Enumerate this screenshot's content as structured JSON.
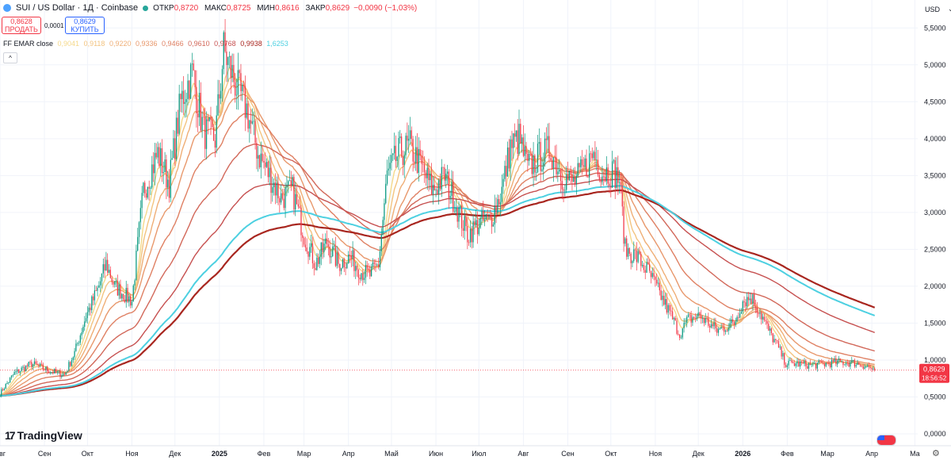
{
  "header": {
    "symbol": "SUI / US Dollar · 1Д · Coinbase",
    "open_label": "ОТКР",
    "open": "0,8720",
    "high_label": "МАКС",
    "high": "0,8725",
    "low_label": "МИН",
    "low": "0,8616",
    "close_label": "ЗАКР",
    "close": "0,8629",
    "change": "−0,0090 (−1,03%)"
  },
  "trade": {
    "sell_price": "0,8628",
    "sell_label": "ПРОДАТЬ",
    "spread": "0,0001",
    "buy_price": "0,8629",
    "buy_label": "КУПИТЬ"
  },
  "indicator": {
    "name": "FF EMAR close",
    "values": [
      "0,9041",
      "0,9118",
      "0,9220",
      "0,9336",
      "0,9466",
      "0,9610",
      "0,9768",
      "0,9938",
      "1,6253"
    ],
    "colors": [
      "#f5d98b",
      "#f3c480",
      "#efae76",
      "#e8986c",
      "#df8063",
      "#d2685a",
      "#c65050",
      "#a8261f",
      "#4dd0e1"
    ],
    "collapse": "^"
  },
  "currency": {
    "label": "USD",
    "arrow": "⌄"
  },
  "logo": {
    "text": "TradingView",
    "mark": "17"
  },
  "price_badge": {
    "price": "0,8629",
    "countdown": "18:56:52"
  },
  "chart_data": {
    "type": "candlestick",
    "symbol": "SUI/USD",
    "timeframe": "1D",
    "ylim": [
      0,
      5.75
    ],
    "yticks": [
      0,
      0.5,
      1.0,
      1.5,
      2.0,
      2.5,
      3.0,
      3.5,
      4.0,
      4.5,
      5.0,
      5.5
    ],
    "ytick_labels": [
      "0,0000",
      "0,5000",
      "1,0000",
      "1,5000",
      "2,0000",
      "2,5000",
      "3,0000",
      "3,5000",
      "4,0000",
      "4,5000",
      "5,0000",
      "5,5000"
    ],
    "xlim_day": [
      0,
      640
    ],
    "xticks": [
      {
        "label": "Авг",
        "day": 0,
        "bold": false
      },
      {
        "label": "Сен",
        "day": 31,
        "bold": false
      },
      {
        "label": "Окт",
        "day": 61,
        "bold": false
      },
      {
        "label": "Ноя",
        "day": 92,
        "bold": false
      },
      {
        "label": "Дек",
        "day": 122,
        "bold": false
      },
      {
        "label": "2025",
        "day": 153,
        "bold": true
      },
      {
        "label": "Фев",
        "day": 184,
        "bold": false
      },
      {
        "label": "Мар",
        "day": 212,
        "bold": false
      },
      {
        "label": "Апр",
        "day": 243,
        "bold": false
      },
      {
        "label": "Май",
        "day": 273,
        "bold": false
      },
      {
        "label": "Июн",
        "day": 304,
        "bold": false
      },
      {
        "label": "Июл",
        "day": 334,
        "bold": false
      },
      {
        "label": "Авг",
        "day": 365,
        "bold": false
      },
      {
        "label": "Сен",
        "day": 396,
        "bold": false
      },
      {
        "label": "Окт",
        "day": 426,
        "bold": false
      },
      {
        "label": "Ноя",
        "day": 457,
        "bold": false
      },
      {
        "label": "Дек",
        "day": 487,
        "bold": false
      },
      {
        "label": "2026",
        "day": 518,
        "bold": true
      },
      {
        "label": "Фев",
        "day": 549,
        "bold": false
      },
      {
        "label": "Мар",
        "day": 577,
        "bold": false
      },
      {
        "label": "Апр",
        "day": 608,
        "bold": false
      },
      {
        "label": "Ма",
        "day": 638,
        "bold": false
      }
    ],
    "price_keypoints": [
      [
        0,
        0.55
      ],
      [
        10,
        0.82
      ],
      [
        22,
        0.95
      ],
      [
        35,
        0.85
      ],
      [
        45,
        0.8
      ],
      [
        52,
        1.1
      ],
      [
        60,
        1.6
      ],
      [
        68,
        1.95
      ],
      [
        74,
        2.3
      ],
      [
        80,
        2.0
      ],
      [
        92,
        1.8
      ],
      [
        100,
        3.3
      ],
      [
        110,
        3.8
      ],
      [
        118,
        3.4
      ],
      [
        126,
        4.5
      ],
      [
        134,
        4.9
      ],
      [
        142,
        4.1
      ],
      [
        150,
        4.0
      ],
      [
        156,
        5.2
      ],
      [
        165,
        4.7
      ],
      [
        172,
        4.4
      ],
      [
        180,
        3.8
      ],
      [
        188,
        3.5
      ],
      [
        196,
        3.2
      ],
      [
        204,
        3.3
      ],
      [
        212,
        2.7
      ],
      [
        220,
        2.3
      ],
      [
        228,
        2.6
      ],
      [
        236,
        2.3
      ],
      [
        244,
        2.4
      ],
      [
        252,
        2.2
      ],
      [
        258,
        2.15
      ],
      [
        264,
        2.3
      ],
      [
        270,
        3.5
      ],
      [
        278,
        3.8
      ],
      [
        286,
        3.9
      ],
      [
        294,
        3.6
      ],
      [
        302,
        3.3
      ],
      [
        310,
        3.5
      ],
      [
        318,
        3.1
      ],
      [
        326,
        2.7
      ],
      [
        334,
        2.85
      ],
      [
        342,
        2.9
      ],
      [
        350,
        3.3
      ],
      [
        356,
        3.9
      ],
      [
        362,
        4.0
      ],
      [
        368,
        3.6
      ],
      [
        376,
        3.75
      ],
      [
        384,
        3.85
      ],
      [
        392,
        3.5
      ],
      [
        400,
        3.4
      ],
      [
        408,
        3.6
      ],
      [
        414,
        3.8
      ],
      [
        420,
        3.55
      ],
      [
        428,
        3.55
      ],
      [
        432,
        3.45
      ],
      [
        436,
        2.5
      ],
      [
        444,
        2.4
      ],
      [
        452,
        2.2
      ],
      [
        460,
        1.9
      ],
      [
        468,
        1.6
      ],
      [
        474,
        1.35
      ],
      [
        480,
        1.55
      ],
      [
        488,
        1.6
      ],
      [
        494,
        1.5
      ],
      [
        500,
        1.4
      ],
      [
        506,
        1.45
      ],
      [
        512,
        1.5
      ],
      [
        518,
        1.8
      ],
      [
        524,
        1.85
      ],
      [
        530,
        1.65
      ],
      [
        536,
        1.4
      ],
      [
        542,
        1.2
      ],
      [
        548,
        0.95
      ],
      [
        556,
        0.95
      ],
      [
        566,
        0.93
      ],
      [
        576,
        0.95
      ],
      [
        586,
        0.97
      ],
      [
        596,
        0.96
      ],
      [
        604,
        0.92
      ],
      [
        610,
        0.8629
      ]
    ],
    "ema_lengths": [
      8,
      13,
      21,
      34,
      55,
      89,
      144,
      233
    ],
    "ema_long_length": 200,
    "ema_labels": [
      "0,9041",
      "0,9118",
      "0,9220",
      "0,9336",
      "0,9466",
      "0,9610",
      "0,9768",
      "0,9938",
      "1,6253"
    ],
    "last_price": 0.8629
  }
}
